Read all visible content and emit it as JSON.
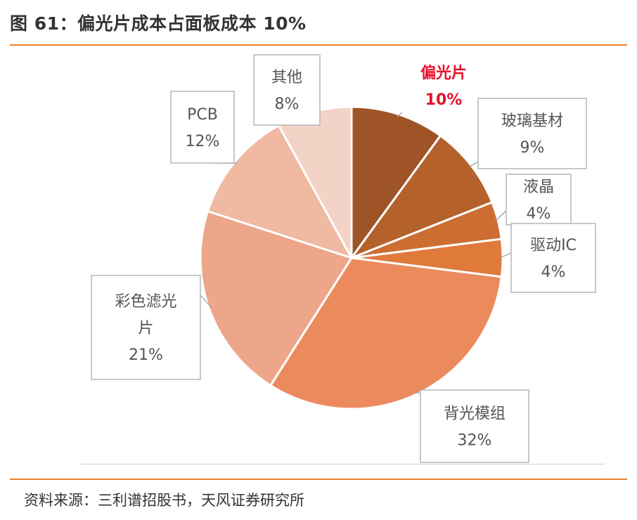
{
  "figure": {
    "title": "图 61：偏光片成本占面板成本 10%",
    "source": "资料来源：三利谱招股书，天风证券研究所"
  },
  "chart_data": {
    "type": "pie",
    "title": "",
    "start_angle_deg": 0,
    "direction": "clockwise",
    "slices": [
      {
        "name": "偏光片",
        "value": 10,
        "label_lines": [
          "偏光片"
        ],
        "pct_label": "10%",
        "color": "#9e5427",
        "highlight": true
      },
      {
        "name": "玻璃基材",
        "value": 9,
        "label_lines": [
          "玻璃基材"
        ],
        "pct_label": "9%",
        "color": "#b5612b"
      },
      {
        "name": "液晶",
        "value": 4,
        "label_lines": [
          "液晶"
        ],
        "pct_label": "4%",
        "color": "#cc6e32"
      },
      {
        "name": "驱动IC",
        "value": 4,
        "label_lines": [
          "驱动IC"
        ],
        "pct_label": "4%",
        "color": "#e07a3b"
      },
      {
        "name": "背光模组",
        "value": 32,
        "label_lines": [
          "背光模组"
        ],
        "pct_label": "32%",
        "color": "#eb8b5d"
      },
      {
        "name": "彩色滤光片",
        "value": 21,
        "label_lines": [
          "彩色滤光",
          "片"
        ],
        "pct_label": "21%",
        "color": "#eda68a"
      },
      {
        "name": "PCB",
        "value": 12,
        "label_lines": [
          "PCB"
        ],
        "pct_label": "12%",
        "color": "#f0b9a2"
      },
      {
        "name": "其他",
        "value": 8,
        "label_lines": [
          "其他"
        ],
        "pct_label": "8%",
        "color": "#f4d3c7"
      }
    ]
  }
}
